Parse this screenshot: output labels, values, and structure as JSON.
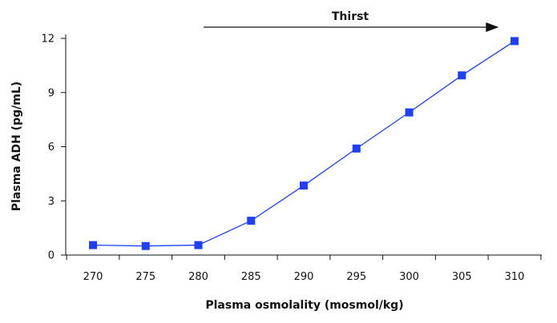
{
  "chart_data": {
    "type": "line",
    "title": "",
    "xlabel": "Plasma osmolality (mosmol/kg)",
    "ylabel": "Plasma ADH (pg/mL)",
    "x_ticks": [
      270,
      275,
      280,
      285,
      290,
      295,
      300,
      305,
      310
    ],
    "y_ticks": [
      0,
      3,
      6,
      9,
      12
    ],
    "x_categories": [
      "270",
      "275",
      "280",
      "285",
      "290",
      "295",
      "300",
      "305",
      "310"
    ],
    "series": [
      {
        "name": "Plasma ADH",
        "color": "#1f3fff",
        "marker": "square",
        "values": [
          0.55,
          0.5,
          0.55,
          1.9,
          3.85,
          5.9,
          7.9,
          9.95,
          11.85
        ]
      }
    ],
    "ylim": [
      0,
      12
    ],
    "grid": false,
    "annotations": [
      {
        "text": "Thirst",
        "type": "arrow",
        "direction": "right",
        "from_x": 280.5,
        "to_x": 308.5
      }
    ]
  }
}
